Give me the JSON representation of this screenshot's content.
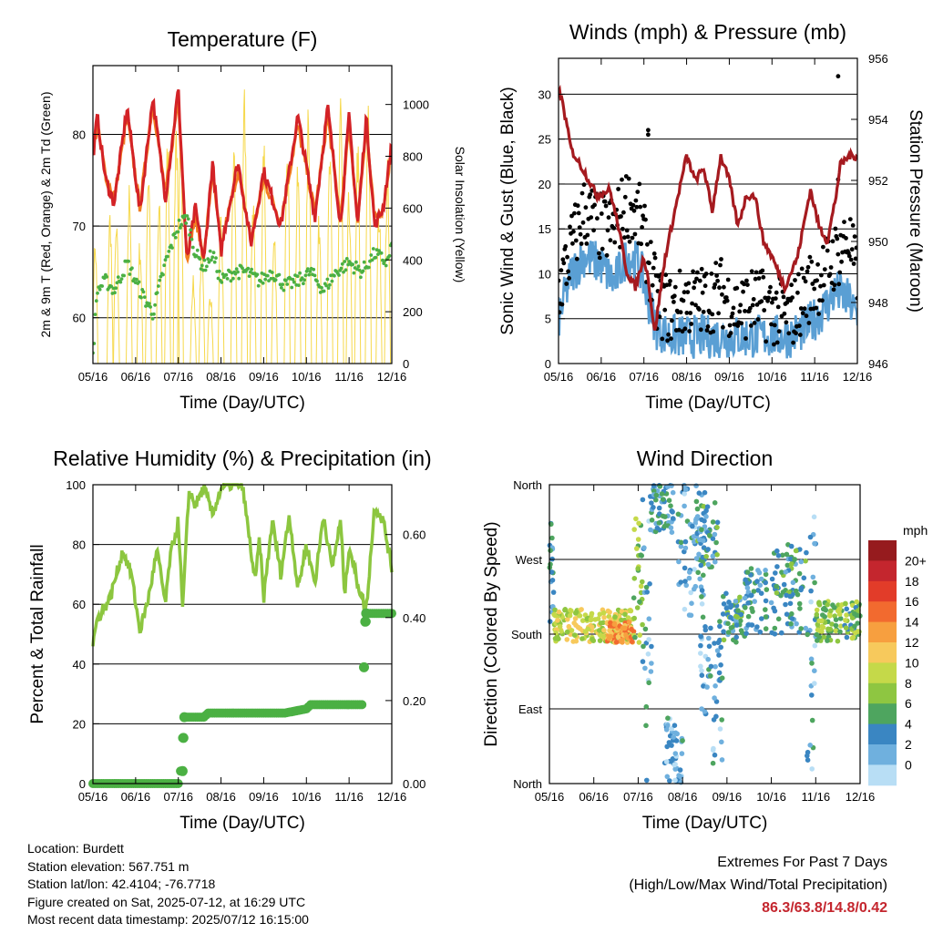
{
  "colors": {
    "temp_2m": "#d32226",
    "temp_9m": "#f27d20",
    "dewpoint": "#4bb043",
    "solar": "#f6d84a",
    "wind": "#5a9fd4",
    "gust": "#000000",
    "pressure": "#a51a1f",
    "humidity": "#8cc63f",
    "rain": "#4bb043"
  },
  "footer": {
    "location": "Location: Burdett",
    "elevation": "Station elevation: 567.751 m",
    "latlon": "Station lat/lon: 42.4104; -76.7718",
    "created": "Figure created on Sat, 2025-07-12, at 16:29 UTC",
    "latest": "Most recent data timestamp: 2025/07/12 16:15:00"
  },
  "extremes": {
    "title": "Extremes For Past 7 Days",
    "subtitle": "(High/Low/Max Wind/Total Precipitation)",
    "values": "86.3/63.8/14.8/0.42"
  },
  "chart_data": [
    {
      "id": "temperature",
      "type": "line",
      "title": "Temperature (F)",
      "xlabel": "Time (Day/UTC)",
      "ylabel": "2m & 9m T (Red, Orange) & 2m Td (Green)",
      "ylabel_right": "Solar Insolation (Yellow)",
      "xticks": [
        "05/16",
        "06/16",
        "07/16",
        "08/16",
        "09/16",
        "10/16",
        "11/16",
        "12/16"
      ],
      "ylim": [
        55,
        87.5
      ],
      "yticks": [
        60,
        70,
        80
      ],
      "ylim_right": [
        0,
        1150
      ],
      "yticks_right": [
        0,
        200,
        400,
        600,
        800,
        1000
      ],
      "grid": true,
      "series": [
        {
          "name": "2m T",
          "x": [
            0,
            0.1,
            0.3,
            0.5,
            0.8,
            1.1,
            1.4,
            1.7,
            2.0,
            2.2,
            2.4,
            2.6,
            2.8,
            3.0,
            3.1,
            3.4,
            3.7,
            4.0,
            4.4,
            4.8,
            5.2,
            5.5,
            5.8,
            6.0,
            6.2,
            6.4,
            6.6,
            6.8,
            7.0
          ],
          "values": [
            77.5,
            82,
            75,
            72.5,
            83,
            71.5,
            84,
            73,
            85,
            66,
            72,
            66,
            77,
            67,
            70,
            77,
            68,
            76,
            70,
            82,
            71,
            83,
            70,
            82,
            70,
            82,
            70,
            72,
            79
          ]
        },
        {
          "name": "9m T",
          "x": [
            0,
            0.1,
            0.3,
            0.5,
            0.8,
            1.1,
            1.4,
            1.7,
            2.0,
            2.2,
            2.4,
            2.6,
            2.8,
            3.0,
            3.1,
            3.4,
            3.7,
            4.0,
            4.4,
            4.8,
            5.2,
            5.5,
            5.8,
            6.0,
            6.2,
            6.4,
            6.6,
            6.8,
            7.0
          ],
          "values": [
            78,
            81,
            75.5,
            73,
            82,
            72,
            83.5,
            73.5,
            84,
            66.5,
            71,
            66.5,
            76,
            67.5,
            70,
            76,
            68.5,
            75,
            70.5,
            81,
            71.5,
            82,
            70.5,
            81,
            70.5,
            81,
            70.5,
            72,
            78.5
          ]
        },
        {
          "name": "2m Td",
          "x": [
            0,
            0.1,
            0.3,
            0.5,
            0.8,
            1.1,
            1.4,
            1.7,
            2.0,
            2.2,
            2.4,
            2.6,
            2.8,
            3.0,
            3.3,
            3.6,
            3.9,
            4.2,
            4.5,
            4.8,
            5.1,
            5.4,
            5.7,
            6.0,
            6.3,
            6.6,
            6.9,
            7.0
          ],
          "values": [
            56,
            63,
            64,
            63,
            66,
            63,
            60.5,
            66,
            70,
            71,
            67,
            65.5,
            67,
            64,
            65,
            65,
            64,
            65,
            63.5,
            64,
            65,
            63,
            65,
            66,
            65,
            67,
            66,
            68
          ]
        },
        {
          "name": "Solar",
          "peaks_x": [
            0.05,
            0.4,
            0.55,
            0.85,
            1.1,
            1.3,
            1.55,
            1.75,
            1.95,
            2.05,
            2.35,
            2.55,
            2.75,
            3.0,
            3.3,
            3.55,
            3.75,
            4.0,
            4.25,
            4.55,
            4.8,
            5.05,
            5.3,
            5.55,
            5.8,
            6.0,
            6.2,
            6.45,
            6.7,
            6.9
          ],
          "peaks": [
            500,
            620,
            560,
            700,
            500,
            820,
            650,
            900,
            1000,
            1050,
            350,
            500,
            300,
            600,
            900,
            1080,
            700,
            950,
            500,
            1000,
            800,
            1050,
            600,
            850,
            1100,
            700,
            900,
            1080,
            650,
            800
          ]
        }
      ]
    },
    {
      "id": "winds",
      "type": "line",
      "title": "Winds (mph) & Pressure (mb)",
      "xlabel": "Time (Day/UTC)",
      "ylabel": "Sonic Wind & Gust (Blue, Black)",
      "ylabel_right": "Station Pressure (Maroon)",
      "xticks": [
        "05/16",
        "06/16",
        "07/16",
        "08/16",
        "09/16",
        "10/16",
        "11/16",
        "12/16"
      ],
      "ylim": [
        0,
        34
      ],
      "yticks": [
        0,
        5,
        10,
        15,
        20,
        25,
        30
      ],
      "ylim_right": [
        946,
        956
      ],
      "yticks_right": [
        946,
        948,
        950,
        952,
        954,
        956
      ],
      "grid": true,
      "series": [
        {
          "name": "Wind",
          "x": [
            0,
            0.3,
            0.6,
            1.0,
            1.3,
            1.6,
            1.9,
            2.1,
            2.3,
            2.6,
            3.0,
            3.4,
            3.8,
            4.2,
            4.6,
            5.0,
            5.4,
            5.8,
            6.2,
            6.5,
            6.8,
            7.0
          ],
          "values": [
            5,
            10,
            12,
            11,
            9,
            12,
            11,
            7,
            4,
            3,
            3,
            3,
            3,
            3,
            3,
            3,
            3,
            4,
            6,
            8,
            7,
            5
          ]
        },
        {
          "name": "Gust",
          "x": [
            0,
            0.3,
            0.6,
            1.0,
            1.3,
            1.6,
            1.9,
            2.1,
            2.3,
            2.6,
            3.0,
            3.4,
            3.8,
            4.2,
            4.6,
            5.0,
            5.4,
            5.8,
            6.2,
            6.5,
            6.8,
            7.0
          ],
          "values": [
            8,
            13,
            17,
            15,
            15,
            18,
            16,
            12,
            7,
            6,
            7,
            7,
            8,
            6,
            7,
            6,
            5,
            8,
            10,
            12,
            14,
            9
          ],
          "outliers_x": [
            2.1,
            2.1,
            6.55,
            6.55
          ],
          "outliers": [
            25.5,
            26,
            32,
            20.5
          ]
        },
        {
          "name": "Pressure",
          "x": [
            0,
            0.1,
            0.3,
            0.6,
            0.9,
            1.2,
            1.4,
            1.6,
            1.8,
            2.0,
            2.1,
            2.25,
            2.5,
            2.8,
            3.0,
            3.2,
            3.4,
            3.6,
            3.8,
            4.0,
            4.2,
            4.4,
            4.6,
            4.8,
            5.0,
            5.3,
            5.6,
            5.9,
            6.1,
            6.3,
            6.5,
            6.6,
            6.8,
            7.0
          ],
          "values": [
            955,
            954.5,
            953,
            952.3,
            951.5,
            951.7,
            950.5,
            949,
            948.5,
            949.5,
            948.8,
            947,
            949.5,
            951.5,
            952.8,
            952,
            952.4,
            951,
            952.8,
            952,
            950.5,
            951.5,
            951.5,
            950,
            949.5,
            948.5,
            949.5,
            951.7,
            950.5,
            950,
            951.5,
            952.5,
            952.8,
            952.8
          ]
        }
      ]
    },
    {
      "id": "humidity",
      "type": "line",
      "title": "Relative Humidity (%) & Precipitation (in)",
      "xlabel": "Time (Day/UTC)",
      "ylabel": "Percent & Total Rainfall",
      "xticks": [
        "05/16",
        "06/16",
        "07/16",
        "08/16",
        "09/16",
        "10/16",
        "11/16",
        "12/16"
      ],
      "ylim": [
        0,
        100
      ],
      "yticks": [
        0,
        20,
        40,
        60,
        80,
        100
      ],
      "ylim_right": [
        0,
        0.72
      ],
      "yticks_right_labels": [
        "0.00",
        "0.20",
        "0.40",
        "0.60"
      ],
      "yticks_right": [
        0,
        0.2,
        0.4,
        0.6
      ],
      "grid": true,
      "series": [
        {
          "name": "Relative Humidity",
          "x": [
            0,
            0.1,
            0.4,
            0.7,
            0.9,
            1.1,
            1.3,
            1.5,
            1.7,
            1.8,
            2.0,
            2.1,
            2.25,
            2.4,
            2.6,
            2.8,
            3.0,
            3.2,
            3.5,
            3.8,
            3.9,
            4.0,
            4.2,
            4.4,
            4.6,
            4.8,
            5.0,
            5.2,
            5.4,
            5.6,
            5.8,
            5.9,
            6.0,
            6.2,
            6.4,
            6.6,
            6.8,
            7.0
          ],
          "values": [
            47,
            55,
            62,
            78,
            70,
            51,
            62,
            78,
            60,
            75,
            88,
            58,
            98,
            93,
            99,
            90,
            99,
            100,
            100,
            67,
            82,
            62,
            88,
            70,
            90,
            65,
            80,
            67,
            90,
            72,
            88,
            63,
            80,
            67,
            58,
            93,
            88,
            72
          ]
        },
        {
          "name": "Total Precipitation",
          "x": [
            0,
            0.5,
            1.0,
            1.5,
            2.0,
            2.05,
            2.1,
            2.15,
            2.3,
            2.6,
            2.7,
            3.0,
            3.5,
            4.0,
            4.5,
            5.0,
            5.1,
            5.5,
            6.0,
            6.3,
            6.35,
            6.4,
            6.45,
            6.6,
            7.0
          ],
          "values": [
            0,
            0,
            0,
            0,
            0,
            0.03,
            0.11,
            0.16,
            0.16,
            0.16,
            0.17,
            0.17,
            0.17,
            0.17,
            0.17,
            0.18,
            0.19,
            0.19,
            0.19,
            0.19,
            0.28,
            0.39,
            0.41,
            0.41,
            0.41
          ]
        }
      ]
    },
    {
      "id": "wind_direction",
      "type": "scatter",
      "title": "Wind Direction",
      "xlabel": "Time (Day/UTC)",
      "ylabel": "Direction (Colored By Speed)",
      "xticks": [
        "05/16",
        "06/16",
        "07/16",
        "08/16",
        "09/16",
        "10/16",
        "11/16",
        "12/16"
      ],
      "ylim": [
        0,
        360
      ],
      "yticks_labels": [
        "North",
        "East",
        "South",
        "West",
        "North"
      ],
      "yticks": [
        0,
        90,
        180,
        270,
        360
      ],
      "grid": true,
      "colorbar": {
        "title": "mph",
        "labels": [
          "20+",
          "18",
          "16",
          "14",
          "12",
          "10",
          "8",
          "6",
          "4",
          "2",
          "0"
        ],
        "colors": [
          "#961b1e",
          "#c4262e",
          "#e23c29",
          "#f26a2f",
          "#f79f3f",
          "#f7c95c",
          "#c5d949",
          "#8ec641",
          "#4ea55f",
          "#3a86c2",
          "#6fb0de",
          "#b8def5"
        ]
      },
      "clusters": [
        {
          "x0": 0,
          "x1": 0.1,
          "d0": 190,
          "d1": 320,
          "speed": 4
        },
        {
          "x0": 0.1,
          "x1": 1.9,
          "d0": 170,
          "d1": 210,
          "speed": 10
        },
        {
          "x0": 1.3,
          "x1": 1.9,
          "d0": 170,
          "d1": 195,
          "speed": 14
        },
        {
          "x0": 1.9,
          "x1": 2.1,
          "d0": 170,
          "d1": 330,
          "speed": 8
        },
        {
          "x0": 2.1,
          "x1": 2.3,
          "d0": 0,
          "d1": 360,
          "speed": 3
        },
        {
          "x0": 2.3,
          "x1": 2.8,
          "d0": 300,
          "d1": 360,
          "speed": 4
        },
        {
          "x0": 2.6,
          "x1": 3.0,
          "d0": 0,
          "d1": 80,
          "speed": 3
        },
        {
          "x0": 2.9,
          "x1": 3.5,
          "d0": 200,
          "d1": 360,
          "speed": 3
        },
        {
          "x0": 3.3,
          "x1": 3.8,
          "d0": 260,
          "d1": 340,
          "speed": 5
        },
        {
          "x0": 3.4,
          "x1": 3.9,
          "d0": 20,
          "d1": 200,
          "speed": 3
        },
        {
          "x0": 3.9,
          "x1": 4.4,
          "d0": 170,
          "d1": 230,
          "speed": 5
        },
        {
          "x0": 4.4,
          "x1": 4.9,
          "d0": 180,
          "d1": 260,
          "speed": 4
        },
        {
          "x0": 5.0,
          "x1": 5.8,
          "d0": 180,
          "d1": 290,
          "speed": 5
        },
        {
          "x0": 5.8,
          "x1": 6.0,
          "d0": 0,
          "d1": 340,
          "speed": 3
        },
        {
          "x0": 6.0,
          "x1": 6.6,
          "d0": 170,
          "d1": 220,
          "speed": 8
        },
        {
          "x0": 6.6,
          "x1": 7.0,
          "d0": 170,
          "d1": 220,
          "speed": 7
        }
      ]
    }
  ]
}
